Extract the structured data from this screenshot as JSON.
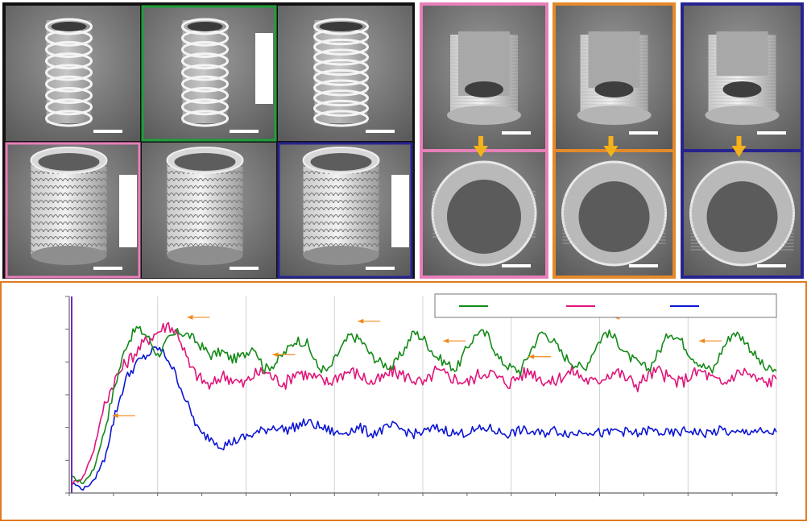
{
  "figure": {
    "colors": {
      "frame_black": "#111111",
      "frame_green": "#1f9e3a",
      "frame_pink": "#e77fb8",
      "frame_orange": "#e58a2a",
      "frame_navy": "#27238f",
      "sem_bg": "#7b7b7b",
      "arrow_gold": "#f6b21a",
      "plot_border": "#e07b1f"
    },
    "sem_left_grid": {
      "rows": [
        [
          {
            "kind": "coil"
          },
          {
            "kind": "coil",
            "highlight": "green"
          },
          {
            "kind": "coil-dense"
          }
        ],
        [
          {
            "kind": "cup",
            "highlight": "pink"
          },
          {
            "kind": "cup"
          },
          {
            "kind": "cup",
            "highlight": "navy"
          }
        ]
      ]
    },
    "sem_right_columns": [
      {
        "frame": "pink",
        "top": "cut-ring-tall",
        "bottom": "ring-top-view"
      },
      {
        "frame": "orange",
        "top": "cut-ring-mid",
        "bottom": "ring-top-view"
      },
      {
        "frame": "navy",
        "top": "cut-ring-low",
        "bottom": "ring-top-view"
      }
    ]
  },
  "chart_data": {
    "type": "line",
    "title": "",
    "xlabel": "",
    "ylabel": "",
    "xlim": [
      0,
      16
    ],
    "ylim": [
      0,
      1.0
    ],
    "grid": "vertical",
    "legend_position": "top-right",
    "series": [
      {
        "color": "#138a17",
        "values": [
          0.08,
          0.05,
          0.12,
          0.32,
          0.55,
          0.75,
          0.84,
          0.8,
          0.7,
          0.78,
          0.82,
          0.8,
          0.75,
          0.7,
          0.72,
          0.68,
          0.7,
          0.75,
          0.63,
          0.66,
          0.72,
          0.78,
          0.76,
          0.64,
          0.62,
          0.72,
          0.8,
          0.78,
          0.7,
          0.66,
          0.64,
          0.72,
          0.82,
          0.78,
          0.7,
          0.66,
          0.63,
          0.74,
          0.82,
          0.8,
          0.68,
          0.64,
          0.62,
          0.73,
          0.82,
          0.78,
          0.7,
          0.66,
          0.63,
          0.74,
          0.82,
          0.78,
          0.7,
          0.66,
          0.63,
          0.72,
          0.82,
          0.78,
          0.7,
          0.65,
          0.62,
          0.74,
          0.82,
          0.78,
          0.7,
          0.63,
          0.62
        ]
      },
      {
        "color": "#e0157a",
        "values": [
          0.05,
          0.08,
          0.22,
          0.45,
          0.58,
          0.66,
          0.72,
          0.78,
          0.82,
          0.86,
          0.8,
          0.64,
          0.58,
          0.54,
          0.6,
          0.58,
          0.55,
          0.6,
          0.62,
          0.58,
          0.56,
          0.62,
          0.6,
          0.58,
          0.56,
          0.6,
          0.62,
          0.6,
          0.56,
          0.58,
          0.62,
          0.6,
          0.58,
          0.55,
          0.62,
          0.6,
          0.58,
          0.56,
          0.6,
          0.62,
          0.58,
          0.56,
          0.6,
          0.62,
          0.58,
          0.56,
          0.6,
          0.62,
          0.58,
          0.56,
          0.6,
          0.62,
          0.58,
          0.55,
          0.6,
          0.62,
          0.58,
          0.56,
          0.6,
          0.62,
          0.58,
          0.55,
          0.6,
          0.62,
          0.58,
          0.56,
          0.58
        ]
      },
      {
        "color": "#0c16d4",
        "values": [
          0.05,
          0.02,
          0.06,
          0.18,
          0.4,
          0.58,
          0.66,
          0.7,
          0.74,
          0.68,
          0.56,
          0.42,
          0.3,
          0.28,
          0.24,
          0.26,
          0.28,
          0.3,
          0.32,
          0.34,
          0.32,
          0.34,
          0.36,
          0.34,
          0.32,
          0.3,
          0.32,
          0.33,
          0.3,
          0.32,
          0.34,
          0.32,
          0.3,
          0.31,
          0.33,
          0.32,
          0.3,
          0.31,
          0.32,
          0.33,
          0.31,
          0.3,
          0.32,
          0.31,
          0.3,
          0.32,
          0.31,
          0.3,
          0.32,
          0.31,
          0.3,
          0.32,
          0.31,
          0.3,
          0.32,
          0.31,
          0.3,
          0.31,
          0.32,
          0.3,
          0.31,
          0.32,
          0.3,
          0.31,
          0.32,
          0.3,
          0.31
        ]
      }
    ],
    "annotations": [
      {
        "type": "arrow",
        "direction": "left",
        "color": "#f08a1a",
        "series": 0,
        "x_indices": [
          3,
          10,
          18,
          26,
          34,
          42,
          50,
          58
        ]
      }
    ]
  }
}
